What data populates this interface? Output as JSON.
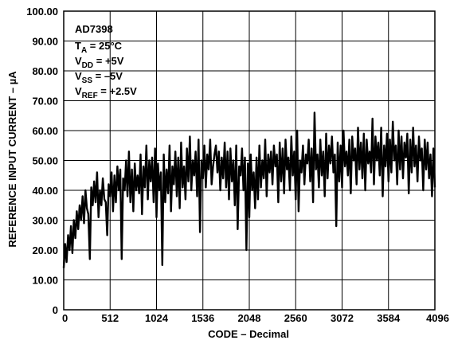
{
  "chart_data": {
    "type": "line",
    "xlabel": "CODE – Decimal",
    "ylabel": "REFERENCE INPUT CURRENT – µA",
    "xlim": [
      0,
      4096
    ],
    "ylim": [
      0,
      100
    ],
    "x_ticks": [
      "0",
      "512",
      "1024",
      "1536",
      "2048",
      "2560",
      "3072",
      "3584",
      "4096"
    ],
    "y_ticks": [
      "0",
      "10.00",
      "20.00",
      "30.00",
      "40.00",
      "50.00",
      "60.00",
      "70.00",
      "80.00",
      "90.00",
      "100.00"
    ],
    "grid": true,
    "annotation": {
      "device": "AD7398",
      "conditions": [
        {
          "main": "T",
          "sub": "A",
          "rest": " = 25°C"
        },
        {
          "main": "V",
          "sub": "DD",
          "rest": " = +5V"
        },
        {
          "main": "V",
          "sub": "SS",
          "rest": " = –5V"
        },
        {
          "main": "V",
          "sub": "REF",
          "rest": " = +2.5V"
        }
      ]
    },
    "series": [
      {
        "x": [
          0,
          16,
          32,
          48,
          64,
          80,
          96,
          112,
          128,
          144,
          160,
          176,
          192,
          208,
          224,
          240,
          256,
          272,
          288,
          304,
          320,
          336,
          352,
          368,
          384,
          400,
          416,
          432,
          448,
          464,
          480,
          496,
          512,
          528,
          544,
          560,
          576,
          592,
          608,
          624,
          640,
          656,
          672,
          688,
          704,
          720,
          736,
          752,
          768,
          784,
          800,
          816,
          832,
          848,
          864,
          880,
          896,
          912,
          928,
          944,
          960,
          976,
          992,
          1008,
          1024,
          1040,
          1056,
          1072,
          1088,
          1104,
          1120,
          1136,
          1152,
          1168,
          1184,
          1200,
          1216,
          1232,
          1248,
          1264,
          1280,
          1296,
          1312,
          1328,
          1344,
          1360,
          1376,
          1392,
          1408,
          1424,
          1440,
          1456,
          1472,
          1488,
          1504,
          1520,
          1536,
          1552,
          1568,
          1584,
          1600,
          1616,
          1632,
          1648,
          1664,
          1680,
          1696,
          1712,
          1728,
          1744,
          1760,
          1776,
          1792,
          1808,
          1824,
          1840,
          1856,
          1872,
          1888,
          1904,
          1920,
          1936,
          1952,
          1968,
          1984,
          2000,
          2016,
          2032,
          2048,
          2064,
          2080,
          2096,
          2112,
          2128,
          2144,
          2160,
          2176,
          2192,
          2208,
          2224,
          2240,
          2256,
          2272,
          2288,
          2304,
          2320,
          2336,
          2352,
          2368,
          2384,
          2400,
          2416,
          2432,
          2448,
          2464,
          2480,
          2496,
          2512,
          2528,
          2544,
          2560,
          2576,
          2592,
          2608,
          2624,
          2640,
          2656,
          2672,
          2688,
          2704,
          2720,
          2736,
          2752,
          2768,
          2784,
          2800,
          2816,
          2832,
          2848,
          2864,
          2880,
          2896,
          2912,
          2928,
          2944,
          2960,
          2976,
          2992,
          3008,
          3024,
          3040,
          3056,
          3072,
          3088,
          3104,
          3120,
          3136,
          3152,
          3168,
          3184,
          3200,
          3216,
          3232,
          3248,
          3264,
          3280,
          3296,
          3312,
          3328,
          3344,
          3360,
          3376,
          3392,
          3408,
          3424,
          3440,
          3456,
          3472,
          3488,
          3504,
          3520,
          3536,
          3552,
          3568,
          3584,
          3600,
          3616,
          3632,
          3648,
          3664,
          3680,
          3696,
          3712,
          3728,
          3744,
          3760,
          3776,
          3792,
          3808,
          3824,
          3840,
          3856,
          3872,
          3888,
          3904,
          3920,
          3936,
          3952,
          3968,
          3984,
          4000,
          4016,
          4032,
          4048,
          4064,
          4080,
          4096
        ],
        "y": [
          14,
          22,
          16,
          25,
          20,
          28,
          19,
          30,
          24,
          33,
          27,
          35,
          30,
          38,
          29,
          40,
          34,
          32,
          17,
          41,
          35,
          43,
          36,
          46,
          31,
          40,
          35,
          44,
          37,
          36,
          25,
          42,
          38,
          46,
          33,
          45,
          36,
          48,
          40,
          47,
          17,
          44,
          40,
          50,
          38,
          53,
          36,
          47,
          33,
          49,
          40,
          45,
          39,
          52,
          32,
          48,
          41,
          55,
          37,
          50,
          43,
          51,
          36,
          54,
          31,
          49,
          40,
          46,
          15,
          52,
          36,
          47,
          39,
          55,
          33,
          48,
          42,
          53,
          38,
          51,
          34,
          56,
          41,
          48,
          37,
          54,
          43,
          58,
          40,
          50,
          45,
          53,
          38,
          57,
          26,
          50,
          44,
          55,
          41,
          52,
          47,
          57,
          42,
          48,
          52,
          55,
          46,
          53,
          40,
          51,
          44,
          56,
          41,
          53,
          37,
          54,
          43,
          50,
          35,
          55,
          27,
          48,
          45,
          54,
          40,
          51,
          20,
          49,
          31,
          52,
          40,
          46,
          34,
          51,
          37,
          55,
          41,
          50,
          44,
          57,
          38,
          52,
          46,
          53,
          42,
          55,
          48,
          52,
          36,
          56,
          43,
          54,
          39,
          57,
          47,
          51,
          40,
          58,
          45,
          53,
          37,
          60,
          33,
          50,
          46,
          55,
          42,
          52,
          49,
          57,
          43,
          54,
          36,
          66,
          47,
          52,
          41,
          57,
          45,
          53,
          38,
          59,
          44,
          55,
          49,
          58,
          46,
          52,
          28,
          56,
          43,
          55,
          41,
          60,
          48,
          53,
          45,
          57,
          39,
          58,
          50,
          54,
          42,
          61,
          47,
          56,
          44,
          59,
          40,
          57,
          49,
          53,
          46,
          64,
          42,
          58,
          50,
          56,
          45,
          61,
          38,
          55,
          48,
          59,
          43,
          57,
          46,
          63,
          50,
          55,
          42,
          60,
          47,
          58,
          44,
          56,
          51,
          59,
          39,
          57,
          46,
          61,
          48,
          55,
          43,
          58,
          50,
          54,
          40,
          57,
          47,
          56,
          44,
          52,
          38,
          54,
          41
        ]
      }
    ]
  }
}
